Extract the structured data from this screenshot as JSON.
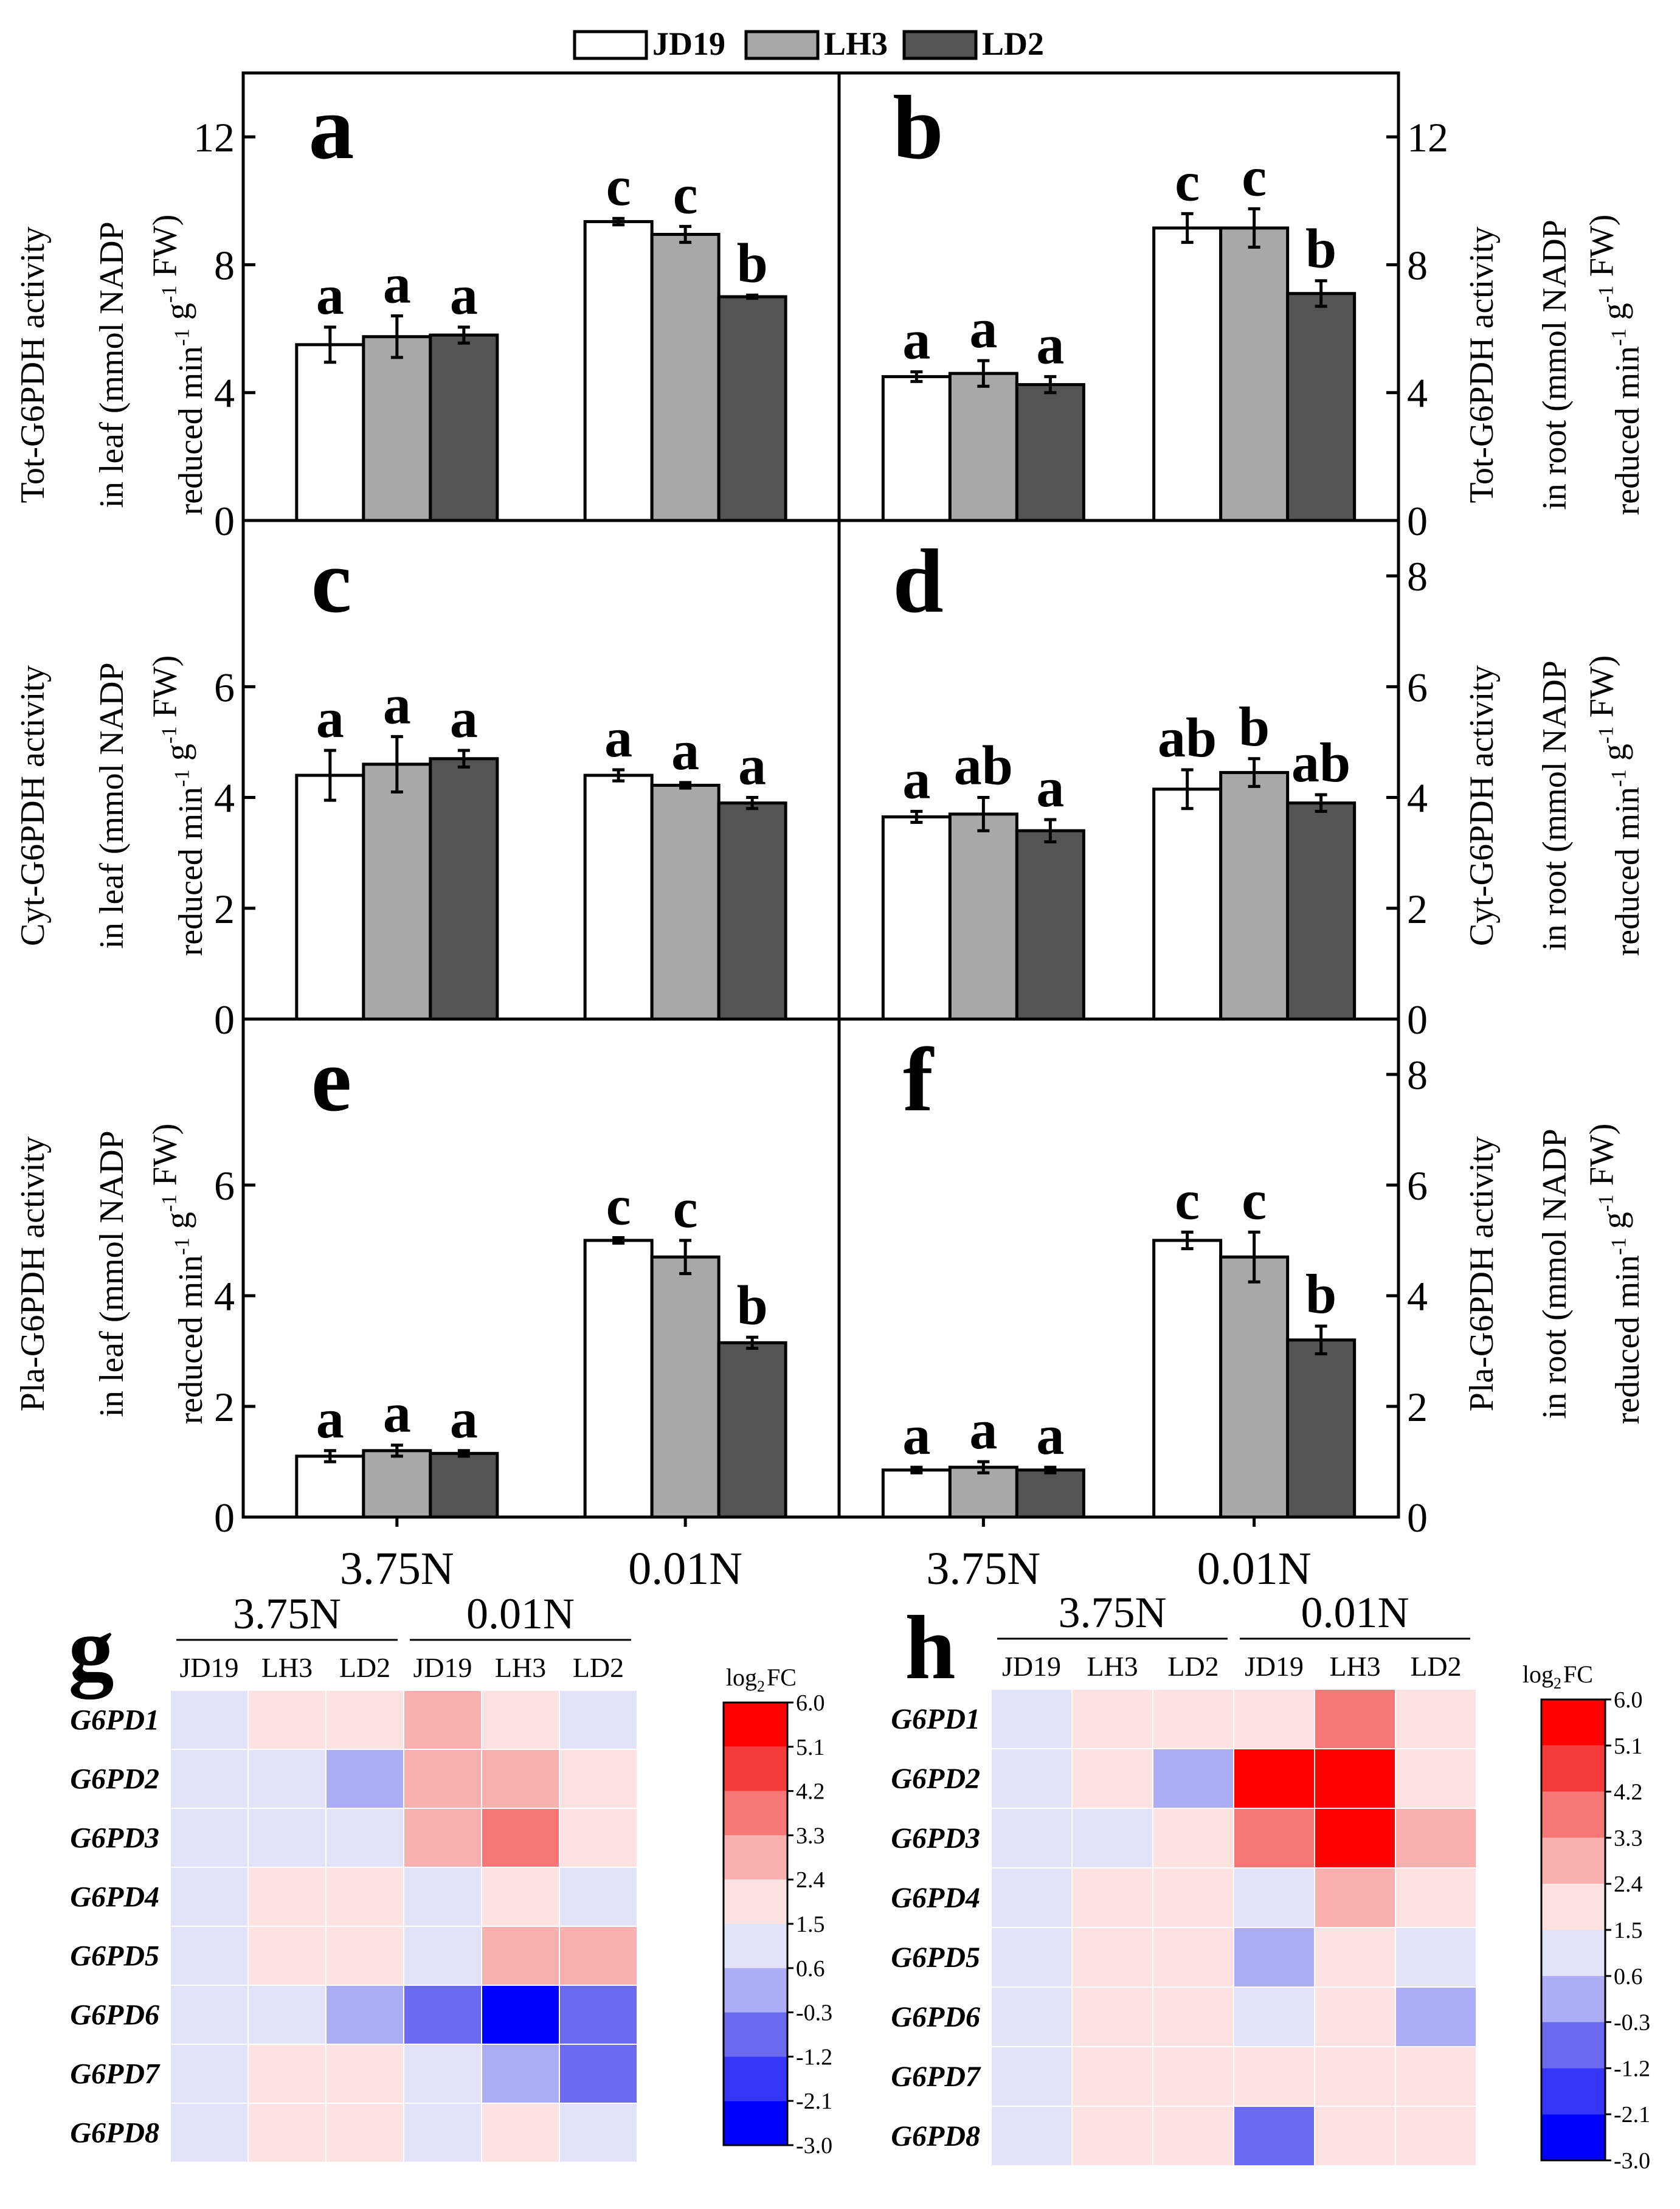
{
  "legend": [
    {
      "name": "JD19",
      "color": "#ffffff"
    },
    {
      "name": "LH3",
      "color": "#a8a8a8"
    },
    {
      "name": "LD2",
      "color": "#545454"
    }
  ],
  "chart_data": [
    {
      "type": "bar",
      "panel": "a",
      "ylabel": [
        "Tot-G6PDH activity",
        "in leaf (mmol NADP",
        "reduced min-1 g-1 FW)"
      ],
      "categories": [
        "3.75N",
        "0.01N"
      ],
      "series": [
        {
          "name": "JD19",
          "values": [
            5.5,
            9.35
          ],
          "errors": [
            0.55,
            0.1
          ],
          "letters": [
            "a",
            "c"
          ]
        },
        {
          "name": "LH3",
          "values": [
            5.75,
            8.95
          ],
          "errors": [
            0.65,
            0.25
          ],
          "letters": [
            "a",
            "c"
          ]
        },
        {
          "name": "LD2",
          "values": [
            5.8,
            7.0
          ],
          "errors": [
            0.25,
            0.05
          ],
          "letters": [
            "a",
            "b"
          ]
        }
      ],
      "ylim": [
        0,
        14
      ],
      "yticks": [
        0,
        4,
        8,
        12
      ]
    },
    {
      "type": "bar",
      "panel": "b",
      "ylabel": [
        "Tot-G6PDH activity",
        "in root (mmol NADP",
        "reduced min-1 g-1 FW)"
      ],
      "categories": [
        "3.75N",
        "0.01N"
      ],
      "series": [
        {
          "name": "JD19",
          "values": [
            4.5,
            9.15
          ],
          "errors": [
            0.15,
            0.45
          ],
          "letters": [
            "a",
            "c"
          ]
        },
        {
          "name": "LH3",
          "values": [
            4.6,
            9.15
          ],
          "errors": [
            0.4,
            0.6
          ],
          "letters": [
            "a",
            "c"
          ]
        },
        {
          "name": "LD2",
          "values": [
            4.25,
            7.1
          ],
          "errors": [
            0.25,
            0.4
          ],
          "letters": [
            "a",
            "b"
          ]
        }
      ],
      "ylim": [
        0,
        14
      ],
      "yticks": [
        0,
        4,
        8,
        12
      ]
    },
    {
      "type": "bar",
      "panel": "c",
      "ylabel": [
        "Cyt-G6PDH activity",
        "in leaf (mmol NADP",
        "reduced min-1 g-1 FW)"
      ],
      "categories": [
        "3.75N",
        "0.01N"
      ],
      "series": [
        {
          "name": "JD19",
          "values": [
            4.4,
            4.4
          ],
          "errors": [
            0.45,
            0.1
          ],
          "letters": [
            "a",
            "a"
          ]
        },
        {
          "name": "LH3",
          "values": [
            4.6,
            4.22
          ],
          "errors": [
            0.5,
            0.05
          ],
          "letters": [
            "a",
            "a"
          ]
        },
        {
          "name": "LD2",
          "values": [
            4.7,
            3.9
          ],
          "errors": [
            0.15,
            0.1
          ],
          "letters": [
            "a",
            "a"
          ]
        }
      ],
      "ylim": [
        0,
        9
      ],
      "yticks": [
        0,
        2,
        4,
        6
      ]
    },
    {
      "type": "bar",
      "panel": "d",
      "ylabel": [
        "Cyt-G6PDH activity",
        "in root (mmol NADP",
        "reduced min-1 g-1 FW)"
      ],
      "categories": [
        "3.75N",
        "0.01N"
      ],
      "series": [
        {
          "name": "JD19",
          "values": [
            3.65,
            4.15
          ],
          "errors": [
            0.1,
            0.35
          ],
          "letters": [
            "a",
            "ab"
          ]
        },
        {
          "name": "LH3",
          "values": [
            3.7,
            4.45
          ],
          "errors": [
            0.3,
            0.25
          ],
          "letters": [
            "ab",
            "b"
          ]
        },
        {
          "name": "LD2",
          "values": [
            3.4,
            3.9
          ],
          "errors": [
            0.2,
            0.15
          ],
          "letters": [
            "a",
            "ab"
          ]
        }
      ],
      "ylim": [
        0,
        9
      ],
      "yticks": [
        0,
        2,
        4,
        6,
        8
      ]
    },
    {
      "type": "bar",
      "panel": "e",
      "ylabel": [
        "Pla-G6PDH activity",
        "in leaf (mmol NADP",
        "reduced min-1 g-1 FW)"
      ],
      "categories": [
        "3.75N",
        "0.01N"
      ],
      "series": [
        {
          "name": "JD19",
          "values": [
            1.1,
            5.0
          ],
          "errors": [
            0.1,
            0.05
          ],
          "letters": [
            "a",
            "c"
          ]
        },
        {
          "name": "LH3",
          "values": [
            1.2,
            4.7
          ],
          "errors": [
            0.1,
            0.3
          ],
          "letters": [
            "a",
            "c"
          ]
        },
        {
          "name": "LD2",
          "values": [
            1.15,
            3.15
          ],
          "errors": [
            0.05,
            0.1
          ],
          "letters": [
            "a",
            "b"
          ]
        }
      ],
      "ylim": [
        0,
        9
      ],
      "yticks": [
        0,
        2,
        4,
        6
      ]
    },
    {
      "type": "bar",
      "panel": "f",
      "ylabel": [
        "Pla-G6PDH activity",
        "in root (mmol NADP",
        "reduced min-1 g-1 FW)"
      ],
      "categories": [
        "3.75N",
        "0.01N"
      ],
      "series": [
        {
          "name": "JD19",
          "values": [
            0.85,
            5.0
          ],
          "errors": [
            0.05,
            0.15
          ],
          "letters": [
            "a",
            "c"
          ]
        },
        {
          "name": "LH3",
          "values": [
            0.9,
            4.7
          ],
          "errors": [
            0.1,
            0.45
          ],
          "letters": [
            "a",
            "c"
          ]
        },
        {
          "name": "LD2",
          "values": [
            0.85,
            3.2
          ],
          "errors": [
            0.05,
            0.25
          ],
          "letters": [
            "a",
            "b"
          ]
        }
      ],
      "ylim": [
        0,
        9
      ],
      "yticks": [
        0,
        2,
        4,
        6,
        8
      ]
    },
    {
      "type": "heatmap",
      "panel": "g",
      "groups": [
        "3.75N",
        "0.01N"
      ],
      "columns": [
        "JD19",
        "LH3",
        "LD2",
        "JD19",
        "LH3",
        "LD2"
      ],
      "rows": [
        "G6PD1",
        "G6PD2",
        "G6PD3",
        "G6PD4",
        "G6PD5",
        "G6PD6",
        "G6PD7",
        "G6PD8"
      ],
      "values": [
        [
          1.0,
          2.0,
          2.0,
          2.8,
          2.0,
          1.0
        ],
        [
          1.0,
          1.0,
          0.2,
          2.8,
          2.8,
          2.0
        ],
        [
          1.0,
          1.0,
          1.0,
          2.8,
          3.6,
          2.0
        ],
        [
          1.0,
          2.0,
          2.0,
          1.0,
          2.0,
          1.0
        ],
        [
          1.0,
          2.0,
          2.0,
          1.0,
          2.8,
          2.8
        ],
        [
          1.0,
          1.0,
          0.2,
          -0.8,
          -3.0,
          -0.8
        ],
        [
          1.0,
          2.0,
          2.0,
          1.0,
          0.2,
          -0.8
        ],
        [
          1.0,
          2.0,
          2.0,
          1.0,
          2.0,
          1.0
        ]
      ],
      "colorbar_title": "log2FC",
      "colorbar_ticks": [
        "6.0",
        "5.1",
        "4.2",
        "3.3",
        "2.4",
        "1.5",
        "0.6",
        "-0.3",
        "-1.2",
        "-2.1",
        "-3.0"
      ]
    },
    {
      "type": "heatmap",
      "panel": "h",
      "groups": [
        "3.75N",
        "0.01N"
      ],
      "columns": [
        "JD19",
        "LH3",
        "LD2",
        "JD19",
        "LH3",
        "LD2"
      ],
      "rows": [
        "G6PD1",
        "G6PD2",
        "G6PD3",
        "G6PD4",
        "G6PD5",
        "G6PD6",
        "G6PD7",
        "G6PD8"
      ],
      "values": [
        [
          1.0,
          2.0,
          2.0,
          2.0,
          3.6,
          2.0
        ],
        [
          1.0,
          2.0,
          0.2,
          6.0,
          6.0,
          2.0
        ],
        [
          1.0,
          1.0,
          2.0,
          3.6,
          6.0,
          2.8
        ],
        [
          1.0,
          2.0,
          2.0,
          1.0,
          2.8,
          2.0
        ],
        [
          1.0,
          2.0,
          2.0,
          0.2,
          2.0,
          1.0
        ],
        [
          1.0,
          2.0,
          2.0,
          1.0,
          2.0,
          0.2
        ],
        [
          1.0,
          2.0,
          2.0,
          2.0,
          2.0,
          2.0
        ],
        [
          1.0,
          2.0,
          2.0,
          -0.8,
          2.0,
          2.0
        ]
      ],
      "colorbar_title": "log2FC",
      "colorbar_ticks": [
        "6.0",
        "5.1",
        "4.2",
        "3.3",
        "2.4",
        "1.5",
        "0.6",
        "-0.3",
        "-1.2",
        "-2.1",
        "-3.0"
      ]
    }
  ]
}
